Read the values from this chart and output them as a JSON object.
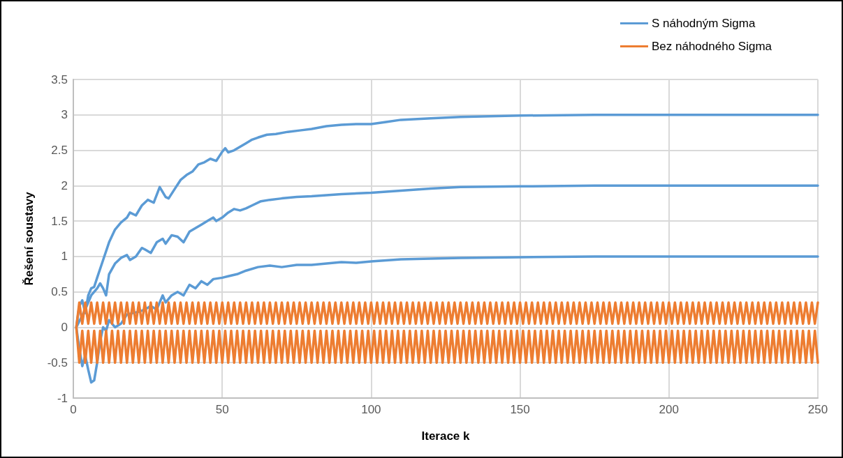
{
  "chart_data": {
    "type": "line",
    "xlabel": "Iterace k",
    "ylabel": "Řešení soustavy",
    "xlim": [
      0,
      250
    ],
    "xticks": [
      0,
      50,
      100,
      150,
      200,
      250
    ],
    "ylim": [
      -1,
      3.5
    ],
    "yticks": [
      -1,
      -0.5,
      0,
      0.5,
      1,
      1.5,
      2,
      2.5,
      3,
      3.5
    ],
    "grid": true,
    "legend": "top right",
    "marker": "none",
    "line_style": "solid",
    "series": [
      {
        "name": "S náhodným Sigma",
        "color": "#5b9bd5",
        "x": [
          1,
          2,
          3,
          4,
          5,
          6,
          7,
          8,
          10,
          12,
          14,
          16,
          18,
          19,
          21,
          23,
          25,
          27,
          29,
          31,
          32,
          34,
          36,
          38,
          40,
          42,
          44,
          46,
          48,
          50,
          51,
          52,
          54,
          56,
          58,
          60,
          62,
          65,
          68,
          72,
          76,
          80,
          85,
          90,
          95,
          100,
          105,
          110,
          120,
          130,
          140,
          150,
          175,
          200,
          250,
          null,
          1,
          4,
          6,
          8,
          9,
          10,
          11,
          12,
          14,
          16,
          18,
          19,
          21,
          23,
          24,
          26,
          28,
          30,
          31,
          33,
          35,
          37,
          39,
          41,
          43,
          45,
          47,
          48,
          50,
          52,
          54,
          56,
          58,
          60,
          63,
          66,
          70,
          75,
          80,
          90,
          100,
          110,
          120,
          130,
          150,
          175,
          250,
          null,
          1,
          2,
          3,
          4,
          5,
          6,
          7,
          8,
          9,
          10,
          11,
          12,
          14,
          16,
          18,
          20,
          22,
          24,
          26,
          28,
          30,
          31,
          33,
          35,
          37,
          39,
          41,
          43,
          45,
          47,
          50,
          52,
          55,
          58,
          62,
          66,
          70,
          75,
          80,
          85,
          90,
          95,
          100,
          110,
          120,
          130,
          150,
          175,
          250
        ],
        "values": [
          0,
          0.3,
          0.38,
          0.2,
          0.45,
          0.55,
          0.57,
          0.7,
          0.95,
          1.2,
          1.38,
          1.48,
          1.55,
          1.62,
          1.58,
          1.72,
          1.8,
          1.76,
          1.98,
          1.84,
          1.82,
          1.95,
          2.08,
          2.15,
          2.2,
          2.3,
          2.33,
          2.38,
          2.35,
          2.48,
          2.53,
          2.47,
          2.5,
          2.55,
          2.6,
          2.65,
          2.68,
          2.72,
          2.73,
          2.76,
          2.78,
          2.8,
          2.84,
          2.86,
          2.87,
          2.87,
          2.9,
          2.93,
          2.95,
          2.97,
          2.98,
          2.99,
          3,
          3,
          3,
          null,
          0,
          0.25,
          0.45,
          0.55,
          0.62,
          0.55,
          0.45,
          0.75,
          0.9,
          0.98,
          1.02,
          0.95,
          1,
          1.12,
          1.1,
          1.05,
          1.2,
          1.25,
          1.18,
          1.3,
          1.28,
          1.2,
          1.35,
          1.4,
          1.45,
          1.5,
          1.55,
          1.5,
          1.55,
          1.62,
          1.67,
          1.65,
          1.68,
          1.72,
          1.78,
          1.8,
          1.82,
          1.84,
          1.85,
          1.88,
          1.9,
          1.93,
          1.96,
          1.98,
          1.99,
          2,
          2,
          null,
          0,
          -0.3,
          -0.55,
          -0.4,
          -0.6,
          -0.78,
          -0.75,
          -0.5,
          -0.2,
          0,
          -0.05,
          0.1,
          0,
          0.05,
          0.18,
          0.2,
          0.22,
          0.25,
          0.3,
          0.25,
          0.45,
          0.35,
          0.45,
          0.5,
          0.45,
          0.6,
          0.55,
          0.65,
          0.6,
          0.68,
          0.7,
          0.72,
          0.75,
          0.8,
          0.85,
          0.87,
          0.85,
          0.88,
          0.88,
          0.9,
          0.92,
          0.91,
          0.93,
          0.96,
          0.97,
          0.98,
          0.99,
          1,
          1
        ]
      },
      {
        "name": "Bez náhodného Sigma",
        "color": "#ed7d31",
        "x": [
          1,
          2,
          3,
          4,
          5,
          6,
          7,
          8,
          9,
          10,
          11,
          12,
          13,
          14,
          15,
          16,
          17,
          18,
          19,
          20,
          21,
          22,
          23,
          24,
          25,
          26,
          27,
          28,
          29,
          30,
          31,
          32,
          33,
          34,
          35,
          36,
          37,
          38,
          39,
          40,
          41,
          42,
          43,
          44,
          45,
          46,
          47,
          48,
          49,
          50,
          51,
          52,
          53,
          54,
          55,
          56,
          57,
          58,
          59,
          60,
          61,
          62,
          63,
          64,
          65,
          66,
          67,
          68,
          69,
          70,
          71,
          72,
          73,
          74,
          75,
          76,
          77,
          78,
          79,
          80,
          81,
          82,
          83,
          84,
          85,
          86,
          87,
          88,
          89,
          90,
          91,
          92,
          93,
          94,
          95,
          96,
          97,
          98,
          99,
          100,
          101,
          102,
          103,
          104,
          105,
          106,
          107,
          108,
          109,
          110,
          111,
          112,
          113,
          114,
          115,
          116,
          117,
          118,
          119,
          120,
          121,
          122,
          123,
          124,
          125,
          126,
          127,
          128,
          129,
          130,
          131,
          132,
          133,
          134,
          135,
          136,
          137,
          138,
          139,
          140,
          141,
          142,
          143,
          144,
          145,
          146,
          147,
          148,
          149,
          150,
          151,
          152,
          153,
          154,
          155,
          156,
          157,
          158,
          159,
          160,
          161,
          162,
          163,
          164,
          165,
          166,
          167,
          168,
          169,
          170,
          171,
          172,
          173,
          174,
          175,
          176,
          177,
          178,
          179,
          180,
          181,
          182,
          183,
          184,
          185,
          186,
          187,
          188,
          189,
          190,
          191,
          192,
          193,
          194,
          195,
          196,
          197,
          198,
          199,
          200,
          201,
          202,
          203,
          204,
          205,
          206,
          207,
          208,
          209,
          210,
          211,
          212,
          213,
          214,
          215,
          216,
          217,
          218,
          219,
          220,
          221,
          222,
          223,
          224,
          225,
          226,
          227,
          228,
          229,
          230,
          231,
          232,
          233,
          234,
          235,
          236,
          237,
          238,
          239,
          240,
          241,
          242,
          243,
          244,
          245,
          246,
          247,
          248,
          249,
          250,
          null,
          1,
          2,
          3,
          4,
          5,
          6,
          7,
          8,
          9,
          10,
          11,
          12,
          13,
          14,
          15,
          16,
          17,
          18,
          19,
          20,
          21,
          22,
          23,
          24,
          25,
          26,
          27,
          28,
          29,
          30,
          31,
          32,
          33,
          34,
          35,
          36,
          37,
          38,
          39,
          40,
          41,
          42,
          43,
          44,
          45,
          46,
          47,
          48,
          49,
          50,
          51,
          52,
          53,
          54,
          55,
          56,
          57,
          58,
          59,
          60,
          61,
          62,
          63,
          64,
          65,
          66,
          67,
          68,
          69,
          70,
          71,
          72,
          73,
          74,
          75,
          76,
          77,
          78,
          79,
          80,
          81,
          82,
          83,
          84,
          85,
          86,
          87,
          88,
          89,
          90,
          91,
          92,
          93,
          94,
          95,
          96,
          97,
          98,
          99,
          100,
          101,
          102,
          103,
          104,
          105,
          106,
          107,
          108,
          109,
          110,
          111,
          112,
          113,
          114,
          115,
          116,
          117,
          118,
          119,
          120,
          121,
          122,
          123,
          124,
          125,
          126,
          127,
          128,
          129,
          130,
          131,
          132,
          133,
          134,
          135,
          136,
          137,
          138,
          139,
          140,
          141,
          142,
          143,
          144,
          145,
          146,
          147,
          148,
          149,
          150,
          151,
          152,
          153,
          154,
          155,
          156,
          157,
          158,
          159,
          160,
          161,
          162,
          163,
          164,
          165,
          166,
          167,
          168,
          169,
          170,
          171,
          172,
          173,
          174,
          175,
          176,
          177,
          178,
          179,
          180,
          181,
          182,
          183,
          184,
          185,
          186,
          187,
          188,
          189,
          190,
          191,
          192,
          193,
          194,
          195,
          196,
          197,
          198,
          199,
          200,
          201,
          202,
          203,
          204,
          205,
          206,
          207,
          208,
          209,
          210,
          211,
          212,
          213,
          214,
          215,
          216,
          217,
          218,
          219,
          220,
          221,
          222,
          223,
          224,
          225,
          226,
          227,
          228,
          229,
          230,
          231,
          232,
          233,
          234,
          235,
          236,
          237,
          238,
          239,
          240,
          241,
          242,
          243,
          244,
          245,
          246,
          247,
          248,
          249,
          250
        ],
        "values": [
          0,
          0.35,
          0.05,
          0.35,
          0.05,
          0.35,
          0.05,
          0.35,
          0.05,
          0.35,
          0.05,
          0.35,
          0.05,
          0.35,
          0.05,
          0.35,
          0.05,
          0.35,
          0.05,
          0.35,
          0.05,
          0.35,
          0.05,
          0.35,
          0.05,
          0.35,
          0.05,
          0.35,
          0.05,
          0.35,
          0.05,
          0.35,
          0.05,
          0.35,
          0.05,
          0.35,
          0.05,
          0.35,
          0.05,
          0.35,
          0.05,
          0.35,
          0.05,
          0.35,
          0.05,
          0.35,
          0.05,
          0.35,
          0.05,
          0.35,
          0.05,
          0.35,
          0.05,
          0.35,
          0.05,
          0.35,
          0.05,
          0.35,
          0.05,
          0.35,
          0.05,
          0.35,
          0.05,
          0.35,
          0.05,
          0.35,
          0.05,
          0.35,
          0.05,
          0.35,
          0.05,
          0.35,
          0.05,
          0.35,
          0.05,
          0.35,
          0.05,
          0.35,
          0.05,
          0.35,
          0.05,
          0.35,
          0.05,
          0.35,
          0.05,
          0.35,
          0.05,
          0.35,
          0.05,
          0.35,
          0.05,
          0.35,
          0.05,
          0.35,
          0.05,
          0.35,
          0.05,
          0.35,
          0.05,
          0.35,
          0.05,
          0.35,
          0.05,
          0.35,
          0.05,
          0.35,
          0.05,
          0.35,
          0.05,
          0.35,
          0.05,
          0.35,
          0.05,
          0.35,
          0.05,
          0.35,
          0.05,
          0.35,
          0.05,
          0.35,
          0.05,
          0.35,
          0.05,
          0.35,
          0.05,
          0.35,
          0.05,
          0.35,
          0.05,
          0.35,
          0.05,
          0.35,
          0.05,
          0.35,
          0.05,
          0.35,
          0.05,
          0.35,
          0.05,
          0.35,
          0.05,
          0.35,
          0.05,
          0.35,
          0.05,
          0.35,
          0.05,
          0.35,
          0.05,
          0.35,
          0.05,
          0.35,
          0.05,
          0.35,
          0.05,
          0.35,
          0.05,
          0.35,
          0.05,
          0.35,
          0.05,
          0.35,
          0.05,
          0.35,
          0.05,
          0.35,
          0.05,
          0.35,
          0.05,
          0.35,
          0.05,
          0.35,
          0.05,
          0.35,
          0.05,
          0.35,
          0.05,
          0.35,
          0.05,
          0.35,
          0.05,
          0.35,
          0.05,
          0.35,
          0.05,
          0.35,
          0.05,
          0.35,
          0.05,
          0.35,
          0.05,
          0.35,
          0.05,
          0.35,
          0.05,
          0.35,
          0.05,
          0.35,
          0.05,
          0.35,
          0.05,
          0.35,
          0.05,
          0.35,
          0.05,
          0.35,
          0.05,
          0.35,
          0.05,
          0.35,
          0.05,
          0.35,
          0.05,
          0.35,
          0.05,
          0.35,
          0.05,
          0.35,
          0.05,
          0.35,
          0.05,
          0.35,
          0.05,
          0.35,
          0.05,
          0.35,
          0.05,
          0.35,
          0.05,
          0.35,
          0.05,
          0.35,
          0.05,
          0.35,
          0.05,
          0.35,
          0.05,
          0.35,
          0.05,
          0.35,
          0.05,
          0.35,
          0.05,
          0.35,
          0.05,
          0.35,
          0.05,
          0.35,
          0.05,
          0.35,
          null,
          0,
          -0.5,
          -0.05,
          -0.5,
          -0.05,
          -0.5,
          -0.05,
          -0.5,
          -0.05,
          -0.5,
          -0.05,
          -0.5,
          -0.05,
          -0.5,
          -0.05,
          -0.5,
          -0.05,
          -0.5,
          -0.05,
          -0.5,
          -0.05,
          -0.5,
          -0.05,
          -0.5,
          -0.05,
          -0.5,
          -0.05,
          -0.5,
          -0.05,
          -0.5,
          -0.05,
          -0.5,
          -0.05,
          -0.5,
          -0.05,
          -0.5,
          -0.05,
          -0.5,
          -0.05,
          -0.5,
          -0.05,
          -0.5,
          -0.05,
          -0.5,
          -0.05,
          -0.5,
          -0.05,
          -0.5,
          -0.05,
          -0.5,
          -0.05,
          -0.5,
          -0.05,
          -0.5,
          -0.05,
          -0.5,
          -0.05,
          -0.5,
          -0.05,
          -0.5,
          -0.05,
          -0.5,
          -0.05,
          -0.5,
          -0.05,
          -0.5,
          -0.05,
          -0.5,
          -0.05,
          -0.5,
          -0.05,
          -0.5,
          -0.05,
          -0.5,
          -0.05,
          -0.5,
          -0.05,
          -0.5,
          -0.05,
          -0.5,
          -0.05,
          -0.5,
          -0.05,
          -0.5,
          -0.05,
          -0.5,
          -0.05,
          -0.5,
          -0.05,
          -0.5,
          -0.05,
          -0.5,
          -0.05,
          -0.5,
          -0.05,
          -0.5,
          -0.05,
          -0.5,
          -0.05,
          -0.5,
          -0.05,
          -0.5,
          -0.05,
          -0.5,
          -0.05,
          -0.5,
          -0.05,
          -0.5,
          -0.05,
          -0.5,
          -0.05,
          -0.5,
          -0.05,
          -0.5,
          -0.05,
          -0.5,
          -0.05,
          -0.5,
          -0.05,
          -0.5,
          -0.05,
          -0.5,
          -0.05,
          -0.5,
          -0.05,
          -0.5,
          -0.05,
          -0.5,
          -0.05,
          -0.5,
          -0.05,
          -0.5,
          -0.05,
          -0.5,
          -0.05,
          -0.5,
          -0.05,
          -0.5,
          -0.05,
          -0.5,
          -0.05,
          -0.5,
          -0.05,
          -0.5,
          -0.05,
          -0.5,
          -0.05,
          -0.5,
          -0.05,
          -0.5,
          -0.05,
          -0.5,
          -0.05,
          -0.5,
          -0.05,
          -0.5,
          -0.05,
          -0.5,
          -0.05,
          -0.5,
          -0.05,
          -0.5,
          -0.05,
          -0.5,
          -0.05,
          -0.5,
          -0.05,
          -0.5,
          -0.05,
          -0.5,
          -0.05,
          -0.5,
          -0.05,
          -0.5,
          -0.05,
          -0.5,
          -0.05,
          -0.5,
          -0.05,
          -0.5,
          -0.05,
          -0.5,
          -0.05,
          -0.5,
          -0.05,
          -0.5,
          -0.05,
          -0.5,
          -0.05,
          -0.5,
          -0.05,
          -0.5,
          -0.05,
          -0.5,
          -0.05,
          -0.5,
          -0.05,
          -0.5,
          -0.05,
          -0.5,
          -0.05,
          -0.5,
          -0.05,
          -0.5,
          -0.05,
          -0.5,
          -0.05,
          -0.5,
          -0.05,
          -0.5,
          -0.05,
          -0.5,
          -0.05,
          -0.5,
          -0.05,
          -0.5,
          -0.05,
          -0.5,
          -0.05,
          -0.5,
          -0.05,
          -0.5,
          -0.05,
          -0.5,
          -0.05,
          -0.5,
          -0.05,
          -0.5,
          -0.05,
          -0.5,
          -0.05,
          -0.5,
          -0.05,
          -0.5,
          -0.05,
          -0.5,
          -0.05,
          -0.5,
          -0.05,
          -0.5,
          -0.05,
          -0.5,
          -0.05,
          -0.5,
          -0.05,
          -0.5,
          -0.05,
          -0.5,
          -0.05,
          -0.5
        ]
      }
    ]
  }
}
